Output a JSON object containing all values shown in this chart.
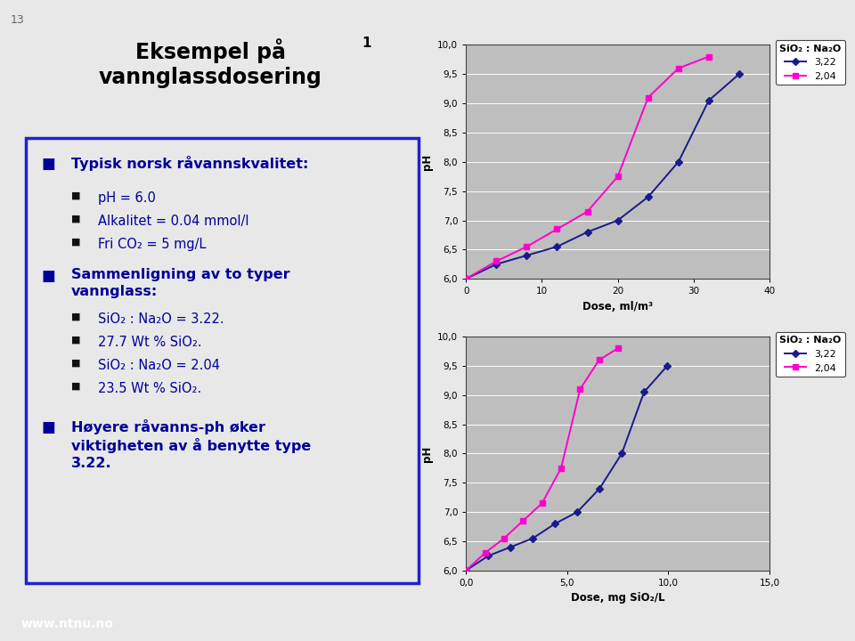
{
  "slide_bg": "#e8e8e8",
  "title_bg": "#ffff99",
  "content_bg": "#cce5f5",
  "content_border": "#2222cc",
  "footer_bg": "#1a3a8c",
  "footer_text": "www.ntnu.no",
  "slide_number": "13",
  "bullet_color": "#000099",
  "chart_bg": "#bebebe",
  "chart_outer_bg": "#ffffff",
  "chart1": {
    "xlabel": "Dose, ml/m³",
    "ylabel": "pH",
    "xlim": [
      0,
      40
    ],
    "ylim": [
      6.0,
      10.0
    ],
    "xticks": [
      0,
      10,
      20,
      30,
      40
    ],
    "yticks": [
      6.0,
      6.5,
      7.0,
      7.5,
      8.0,
      8.5,
      9.0,
      9.5,
      10.0
    ],
    "ytick_labels": [
      "6,0",
      "6,5",
      "7,0",
      "7,5",
      "8,0",
      "8,5",
      "9,0",
      "9,5",
      "10,0"
    ],
    "series_322_x": [
      0,
      4,
      8,
      12,
      16,
      20,
      24,
      28,
      32,
      36
    ],
    "series_322_y": [
      6.0,
      6.25,
      6.4,
      6.55,
      6.8,
      7.0,
      7.4,
      8.0,
      9.05,
      9.5
    ],
    "series_204_x": [
      0,
      4,
      8,
      12,
      16,
      20,
      24,
      28,
      32
    ],
    "series_204_y": [
      6.0,
      6.3,
      6.55,
      6.85,
      7.15,
      7.75,
      9.1,
      9.6,
      9.8
    ],
    "color_322": "#1a1a8c",
    "color_204": "#ff00cc",
    "legend_title": "SiO₂ : Na₂O",
    "legend_322": "3,22",
    "legend_204": "2,04"
  },
  "chart2": {
    "xlabel": "Dose, mg SiO₂/L",
    "ylabel": "pH",
    "xlim": [
      0.0,
      15.0
    ],
    "ylim": [
      6.0,
      10.0
    ],
    "xticks": [
      0.0,
      5.0,
      10.0,
      15.0
    ],
    "xtick_labels": [
      "0,0",
      "5,0",
      "10,0",
      "15,0"
    ],
    "yticks": [
      6.0,
      6.5,
      7.0,
      7.5,
      8.0,
      8.5,
      9.0,
      9.5,
      10.0
    ],
    "ytick_labels": [
      "6,0",
      "6,5",
      "7,0",
      "7,5",
      "8,0",
      "8,5",
      "9,0",
      "9,5",
      "10,0"
    ],
    "series_322_x": [
      0,
      1.1,
      2.2,
      3.3,
      4.4,
      5.5,
      6.6,
      7.7,
      8.8,
      9.95
    ],
    "series_322_y": [
      6.0,
      6.25,
      6.4,
      6.55,
      6.8,
      7.0,
      7.4,
      8.0,
      9.05,
      9.5
    ],
    "series_204_x": [
      0,
      0.94,
      1.88,
      2.82,
      3.76,
      4.7,
      5.64,
      6.58,
      7.52
    ],
    "series_204_y": [
      6.0,
      6.3,
      6.55,
      6.85,
      7.15,
      7.75,
      9.1,
      9.6,
      9.8
    ],
    "color_322": "#1a1a8c",
    "color_204": "#ff00cc",
    "legend_title": "SiO₂ : Na₂O",
    "legend_322": "3,22",
    "legend_204": "2,04"
  }
}
